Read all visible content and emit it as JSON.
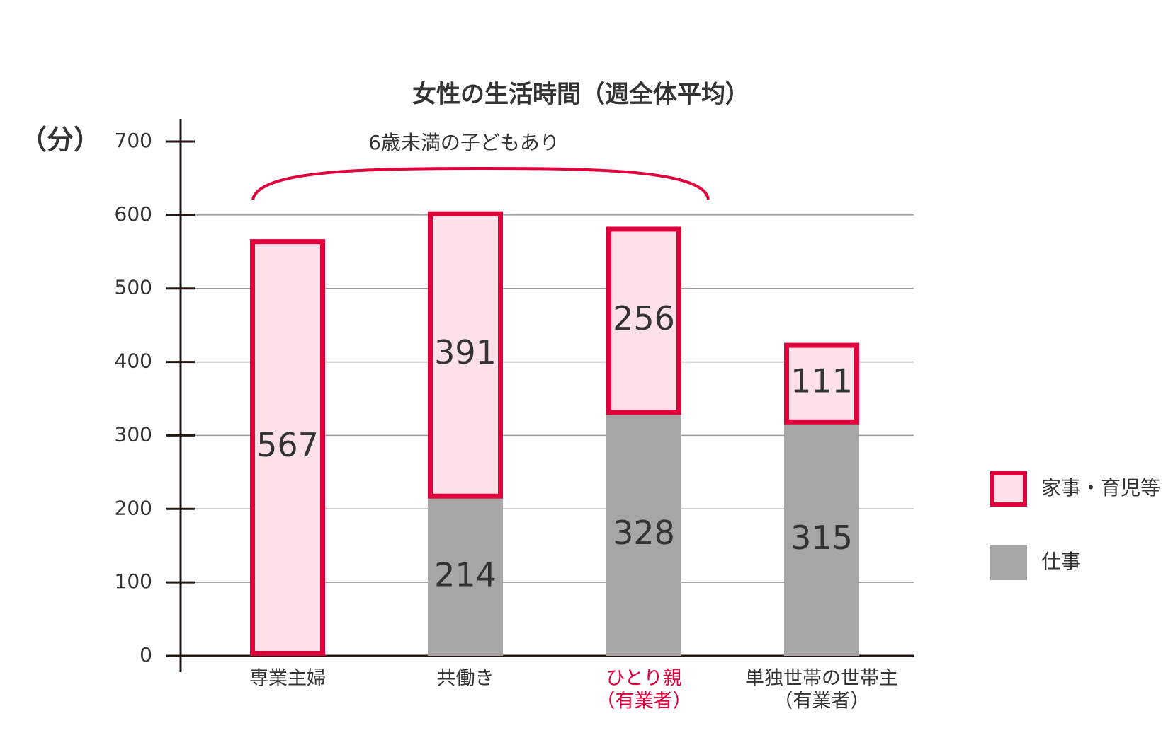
{
  "chart_data": {
    "type": "stacked-bar",
    "title": "女性の生活時間（週全体平均）",
    "y_unit": "（分）",
    "annotation": "6歳未満の子どもあり",
    "categories": [
      [
        "専業主婦"
      ],
      [
        "共働き"
      ],
      [
        "ひとり親",
        "（有業者）"
      ],
      [
        "単独世帯の世帯主",
        "（有業者）"
      ]
    ],
    "highlight_category": 2,
    "highlight_color": "#e0003c",
    "series": [
      {
        "name": "仕事",
        "color": "#a6a6a6",
        "values": [
          null,
          214,
          328,
          315
        ]
      },
      {
        "name": "家事・育児等",
        "color": "#fde0e8",
        "stroke": "#e0003c",
        "values": [
          567,
          391,
          256,
          111
        ]
      }
    ],
    "ylim": [
      0,
      700
    ],
    "yticks": [
      0,
      100,
      200,
      300,
      400,
      500,
      600,
      700
    ],
    "grid": true
  }
}
